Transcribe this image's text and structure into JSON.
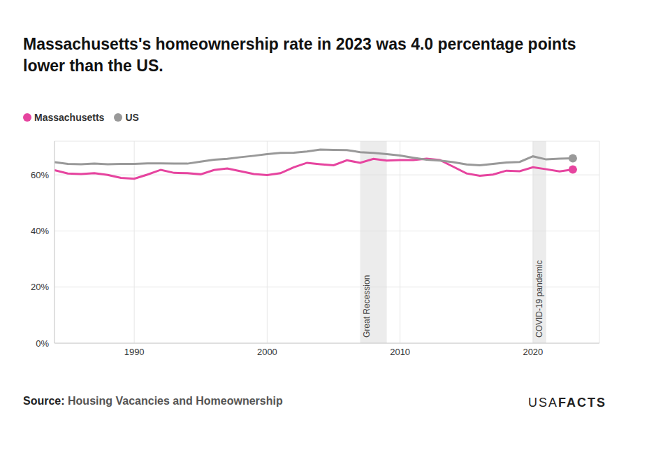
{
  "chart_data": {
    "type": "line",
    "title": "Massachusetts's homeownership rate in 2023 was 4.0 percentage points lower than the US.",
    "x": [
      1984,
      1985,
      1986,
      1987,
      1988,
      1989,
      1990,
      1991,
      1992,
      1993,
      1994,
      1995,
      1996,
      1997,
      1998,
      1999,
      2000,
      2001,
      2002,
      2003,
      2004,
      2005,
      2006,
      2007,
      2008,
      2009,
      2010,
      2011,
      2012,
      2013,
      2014,
      2015,
      2016,
      2017,
      2018,
      2019,
      2020,
      2021,
      2022,
      2023
    ],
    "series": [
      {
        "name": "Massachusetts",
        "color": "#e6449f",
        "marker": "last",
        "values": [
          61.7,
          60.5,
          60.3,
          60.6,
          60.0,
          58.9,
          58.6,
          60.1,
          61.8,
          60.7,
          60.6,
          60.2,
          61.7,
          62.3,
          61.3,
          60.3,
          59.9,
          60.6,
          62.7,
          64.3,
          63.8,
          63.4,
          65.2,
          64.3,
          65.7,
          65.1,
          65.3,
          65.3,
          65.8,
          65.3,
          62.9,
          60.5,
          59.7,
          60.1,
          61.5,
          61.3,
          62.7,
          62.0,
          61.2,
          61.9
        ]
      },
      {
        "name": "US",
        "color": "#999999",
        "marker": "last",
        "values": [
          64.5,
          63.9,
          63.8,
          64.0,
          63.8,
          63.9,
          63.9,
          64.1,
          64.1,
          64.0,
          64.0,
          64.7,
          65.4,
          65.7,
          66.3,
          66.8,
          67.4,
          67.8,
          67.9,
          68.3,
          69.0,
          68.9,
          68.8,
          68.1,
          67.8,
          67.4,
          66.9,
          66.1,
          65.4,
          65.1,
          64.5,
          63.7,
          63.4,
          63.9,
          64.4,
          64.6,
          66.6,
          65.5,
          65.8,
          65.9
        ]
      }
    ],
    "xlim": [
      1984,
      2025
    ],
    "xticks": [
      1990,
      2000,
      2010,
      2020
    ],
    "ylim": [
      0,
      72
    ],
    "yticks": [
      {
        "value": 0,
        "label": "0%"
      },
      {
        "value": 20,
        "label": "20%"
      },
      {
        "value": 40,
        "label": "40%"
      },
      {
        "value": 60,
        "label": "60%"
      }
    ],
    "grid": true,
    "legend": "top-left",
    "annotations": [
      {
        "label": "Great Recession",
        "x_start": 2007,
        "x_end": 2009
      },
      {
        "label": "COVID-19 pandemic",
        "x_start": 2020,
        "x_end": 2021
      }
    ],
    "source_label": "Source:",
    "source": "Housing Vacancies and Homeownership",
    "logo": [
      "USA",
      "FACTS"
    ]
  }
}
